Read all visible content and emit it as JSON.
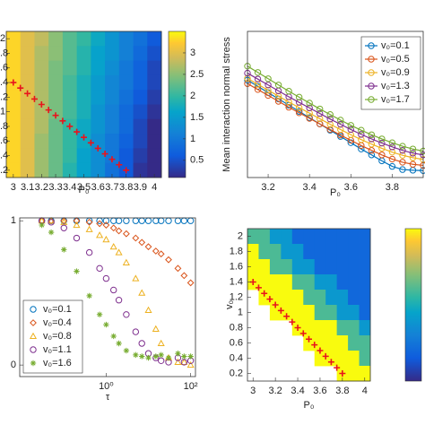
{
  "chart_data": [
    {
      "type": "heatmap",
      "xlabel": "P₀",
      "x": [
        3,
        3.1,
        3.2,
        3.3,
        3.4,
        3.5,
        3.6,
        3.7,
        3.8,
        3.9,
        4
      ],
      "y": [
        2,
        1.8,
        1.6,
        1.4,
        1.2,
        1,
        0.8,
        0.6,
        0.4,
        0.2
      ],
      "values": [
        [
          3.3,
          3.0,
          2.8,
          2.5,
          2.2,
          2.0,
          1.7,
          1.4,
          1.1,
          0.9,
          0.6
        ],
        [
          3.3,
          3.0,
          2.7,
          2.5,
          2.2,
          1.9,
          1.6,
          1.4,
          1.1,
          0.8,
          0.5
        ],
        [
          3.3,
          3.0,
          2.7,
          2.4,
          2.2,
          1.9,
          1.6,
          1.3,
          1.0,
          0.7,
          0.4
        ],
        [
          3.3,
          3.0,
          2.7,
          2.4,
          2.1,
          1.8,
          1.5,
          1.2,
          1.0,
          0.7,
          0.4
        ],
        [
          3.3,
          3.0,
          2.7,
          2.4,
          2.1,
          1.8,
          1.5,
          1.2,
          0.9,
          0.6,
          0.3
        ],
        [
          3.3,
          3.0,
          2.7,
          2.4,
          2.1,
          1.8,
          1.4,
          1.1,
          0.8,
          0.5,
          0.2
        ],
        [
          3.3,
          3.0,
          2.7,
          2.3,
          2.0,
          1.7,
          1.4,
          1.1,
          0.8,
          0.4,
          0.1
        ],
        [
          3.3,
          3.0,
          2.6,
          2.3,
          2.0,
          1.7,
          1.3,
          1.0,
          0.7,
          0.4,
          0.1
        ],
        [
          3.3,
          3.0,
          2.6,
          2.3,
          2.0,
          1.6,
          1.3,
          1.0,
          0.6,
          0.3,
          0.1
        ],
        [
          3.3,
          3.0,
          2.6,
          2.3,
          1.9,
          1.6,
          1.3,
          0.9,
          0.6,
          0.2,
          0.1
        ]
      ],
      "xlim": [
        2.95,
        4.05
      ],
      "ylim": [
        0.1,
        2.1
      ],
      "xticks": [
        3,
        3.1,
        3.2,
        3.3,
        3.4,
        3.5,
        3.6,
        3.7,
        3.8,
        3.9,
        4
      ],
      "yticks": [
        2,
        {
          "value": 1.8,
          "label": ".8"
        },
        {
          "value": 1.6,
          "label": ".6"
        },
        {
          "value": 1.4,
          "label": ".4"
        },
        {
          "value": 1.2,
          "label": ".2"
        },
        1,
        {
          "value": 0.8,
          "label": ".8"
        },
        {
          "value": 0.6,
          "label": ".6"
        },
        {
          "value": 0.4,
          "label": ".4"
        },
        {
          "value": 0.2,
          "label": ".2"
        }
      ],
      "colorbar": {
        "lim": [
          0.1,
          3.5
        ],
        "ticks": [
          0.5,
          1,
          1.5,
          2,
          2.5,
          3
        ]
      },
      "crosses": {
        "color": "#e8141c",
        "x": [
          3.0,
          3.05,
          3.1,
          3.15,
          3.2,
          3.25,
          3.3,
          3.35,
          3.4,
          3.45,
          3.5,
          3.55,
          3.6,
          3.65,
          3.7,
          3.75,
          3.8
        ],
        "y": [
          1.4,
          1.325,
          1.25,
          1.175,
          1.1,
          1.025,
          0.95,
          0.875,
          0.8,
          0.725,
          0.65,
          0.575,
          0.5,
          0.425,
          0.35,
          0.275,
          0.2
        ]
      }
    },
    {
      "type": "line",
      "xlabel": "P₀",
      "ylabel": "Mean interaction normal stress",
      "x": [
        3.1,
        3.15,
        3.2,
        3.25,
        3.3,
        3.35,
        3.4,
        3.45,
        3.5,
        3.55,
        3.6,
        3.65,
        3.7,
        3.75,
        3.8,
        3.85,
        3.9,
        3.95
      ],
      "series": [
        {
          "name": "v₀=0.1",
          "color": "#0072bd",
          "values": [
            2.6,
            2.42,
            2.24,
            2.06,
            1.88,
            1.7,
            1.52,
            1.34,
            1.16,
            0.98,
            0.8,
            0.62,
            0.45,
            0.28,
            0.12,
            0.03,
            0.01,
            0.0
          ]
        },
        {
          "name": "v₀=0.5",
          "color": "#d95319",
          "values": [
            2.5,
            2.33,
            2.16,
            1.99,
            1.82,
            1.66,
            1.5,
            1.34,
            1.18,
            1.02,
            0.87,
            0.72,
            0.58,
            0.45,
            0.33,
            0.24,
            0.18,
            0.15
          ]
        },
        {
          "name": "v₀=0.9",
          "color": "#edb120",
          "values": [
            2.65,
            2.48,
            2.31,
            2.14,
            1.97,
            1.81,
            1.65,
            1.49,
            1.33,
            1.18,
            1.03,
            0.89,
            0.76,
            0.64,
            0.53,
            0.44,
            0.37,
            0.32
          ]
        },
        {
          "name": "v₀=1.3",
          "color": "#7e2f8e",
          "values": [
            2.8,
            2.63,
            2.46,
            2.29,
            2.12,
            1.96,
            1.8,
            1.64,
            1.48,
            1.33,
            1.18,
            1.04,
            0.91,
            0.79,
            0.68,
            0.58,
            0.5,
            0.45
          ]
        },
        {
          "name": "v₀=1.7",
          "color": "#77ac30",
          "values": [
            3.0,
            2.82,
            2.64,
            2.46,
            2.28,
            2.11,
            1.94,
            1.77,
            1.61,
            1.45,
            1.3,
            1.16,
            1.03,
            0.91,
            0.8,
            0.7,
            0.62,
            0.56
          ]
        }
      ],
      "xlim": [
        3.1,
        3.95
      ],
      "ylim": [
        -0.2,
        4
      ],
      "xticks": [
        3.2,
        3.4,
        3.6,
        3.8
      ],
      "legend": "upper right"
    },
    {
      "type": "scatter",
      "xlabel": "τ",
      "xlog": true,
      "x": [
        0.03,
        0.05,
        0.1,
        0.2,
        0.4,
        0.7,
        1,
        1.5,
        2,
        3,
        5,
        7,
        10,
        15,
        20,
        30,
        50,
        70,
        100
      ],
      "series": [
        {
          "name": "v₀=0.1",
          "color": "#0072bd",
          "marker": "circle",
          "values": [
            1,
            1,
            1,
            1,
            1,
            1,
            1,
            1,
            1,
            1,
            1,
            1,
            1,
            1,
            1,
            1,
            1,
            1,
            1
          ]
        },
        {
          "name": "v₀=0.4",
          "color": "#d95319",
          "marker": "diamond",
          "values": [
            1,
            1,
            1,
            1,
            0.99,
            0.98,
            0.97,
            0.95,
            0.93,
            0.91,
            0.88,
            0.85,
            0.82,
            0.79,
            0.77,
            0.73,
            0.67,
            0.62,
            0.57
          ]
        },
        {
          "name": "v₀=0.8",
          "color": "#edb120",
          "marker": "triangle",
          "values": [
            1,
            1,
            0.99,
            0.97,
            0.94,
            0.9,
            0.87,
            0.82,
            0.78,
            0.71,
            0.6,
            0.5,
            0.38,
            0.25,
            0.15,
            0.05,
            0.02,
            0.02,
            0.0
          ]
        },
        {
          "name": "v₀=1.1",
          "color": "#7e2f8e",
          "marker": "circle",
          "values": [
            1,
            0.99,
            0.95,
            0.88,
            0.78,
            0.67,
            0.6,
            0.52,
            0.45,
            0.35,
            0.23,
            0.15,
            0.08,
            0.05,
            0.03,
            0.02,
            0.05,
            0.02,
            0.03
          ]
        },
        {
          "name": "v₀=1.6",
          "color": "#77ac30",
          "marker": "star",
          "values": [
            0.97,
            0.92,
            0.8,
            0.65,
            0.48,
            0.35,
            0.28,
            0.2,
            0.15,
            0.1,
            0.07,
            0.06,
            0.05,
            0.06,
            0.07,
            0.05,
            0.08,
            0.06,
            0.06
          ]
        }
      ],
      "xlim": [
        0.009,
        130
      ],
      "ylim": [
        -0.08,
        1.02
      ],
      "xticks": [
        {
          "value": 1,
          "label": "10⁰"
        },
        {
          "value": 100,
          "label": "10²"
        }
      ],
      "yticks": [
        0,
        1
      ],
      "legend": "lower left"
    },
    {
      "type": "heatmap",
      "xlabel": "P₀",
      "ylabel": "v₀",
      "x": [
        3,
        3.1,
        3.2,
        3.3,
        3.4,
        3.5,
        3.6,
        3.7,
        3.8,
        3.9,
        4
      ],
      "y": [
        2,
        1.8,
        1.6,
        1.4,
        1.2,
        1,
        0.8,
        0.6,
        0.4,
        0.2
      ],
      "values": [
        [
          0.6,
          0.6,
          0.4,
          0.4,
          0.2,
          0.2,
          0.2,
          0.2,
          0.2,
          0.2,
          0.2
        ],
        [
          1,
          0.6,
          0.6,
          0.4,
          0.4,
          0.2,
          0.2,
          0.2,
          0.2,
          0.2,
          0.2
        ],
        [
          1,
          1,
          0.6,
          0.6,
          0.4,
          0.4,
          0.2,
          0.2,
          0.2,
          0.2,
          0.2
        ],
        [
          1,
          1,
          1,
          1,
          0.6,
          0.6,
          0.4,
          0.4,
          0.2,
          0.2,
          0.2
        ],
        [
          null,
          1,
          1,
          1,
          1,
          0.6,
          0.6,
          0.4,
          0.4,
          0.2,
          0.2
        ],
        [
          null,
          null,
          1,
          1,
          1,
          1,
          0.6,
          0.6,
          0.4,
          0.4,
          0.2
        ],
        [
          null,
          null,
          null,
          null,
          1,
          1,
          1,
          1,
          0.6,
          0.6,
          0.4
        ],
        [
          null,
          null,
          null,
          null,
          null,
          1,
          1,
          1,
          1,
          0.6,
          0.6
        ],
        [
          null,
          null,
          null,
          null,
          null,
          null,
          1,
          1,
          1,
          1,
          0.6
        ],
        [
          null,
          null,
          null,
          null,
          null,
          null,
          null,
          null,
          1,
          1,
          1
        ]
      ],
      "xlim": [
        2.95,
        4.05
      ],
      "ylim": [
        0.1,
        2.1
      ],
      "xticks": [
        3,
        3.2,
        3.4,
        3.6,
        3.8,
        4
      ],
      "yticks": [
        0.2,
        0.4,
        0.6,
        0.8,
        1,
        1.2,
        1.4,
        1.6,
        1.8,
        2
      ],
      "colorbar": {
        "lim": [
          0,
          1
        ]
      },
      "crosses": {
        "color": "#e8141c",
        "x": [
          3.0,
          3.05,
          3.1,
          3.15,
          3.2,
          3.25,
          3.3,
          3.35,
          3.4,
          3.45,
          3.5,
          3.55,
          3.6,
          3.65,
          3.7,
          3.75,
          3.8
        ],
        "y": [
          1.4,
          1.325,
          1.25,
          1.175,
          1.1,
          1.025,
          0.95,
          0.875,
          0.8,
          0.725,
          0.65,
          0.575,
          0.5,
          0.425,
          0.35,
          0.275,
          0.2
        ]
      }
    }
  ]
}
